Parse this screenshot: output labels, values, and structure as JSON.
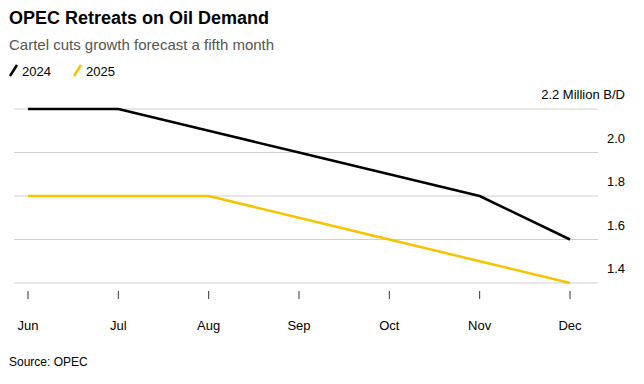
{
  "chart_data": {
    "type": "line",
    "title": "OPEC Retreats on Oil Demand",
    "subtitle": "Cartel cuts growth forecast a fifth month",
    "source": "Source: OPEC",
    "categories": [
      "Jun",
      "Jul",
      "Aug",
      "Sep",
      "Oct",
      "Nov",
      "Dec"
    ],
    "series": [
      {
        "name": "2024",
        "color": "#000000",
        "values": [
          2.2,
          2.2,
          2.1,
          2.0,
          1.9,
          1.8,
          1.6
        ]
      },
      {
        "name": "2025",
        "color": "#f7c300",
        "values": [
          1.8,
          1.8,
          1.8,
          1.7,
          1.6,
          1.5,
          1.4
        ]
      }
    ],
    "ylim": [
      1.4,
      2.2
    ],
    "yticks": [
      {
        "value": 2.2,
        "label": "2.2 Million B/D"
      },
      {
        "value": 2,
        "label": "2.0"
      },
      1.8,
      1.6,
      1.4
    ],
    "grid": true,
    "legend": "top-left"
  }
}
